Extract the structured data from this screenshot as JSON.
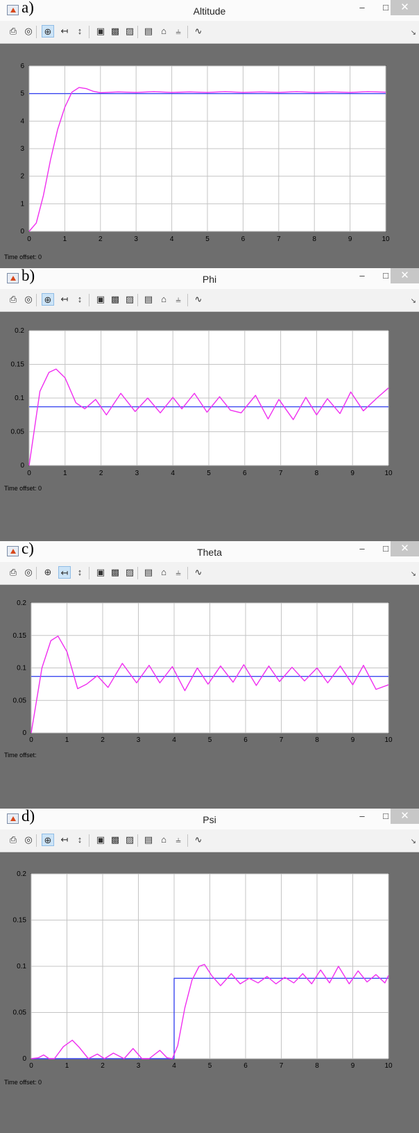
{
  "toolbar_icons": [
    {
      "name": "print-icon",
      "glyph": "⎙"
    },
    {
      "name": "parameters-icon",
      "glyph": "◎"
    },
    {
      "name": "zoom-in-icon",
      "glyph": "⊕"
    },
    {
      "name": "zoom-x-icon",
      "glyph": "↤"
    },
    {
      "name": "zoom-y-icon",
      "glyph": "↕"
    },
    {
      "name": "autoscale-icon",
      "glyph": "▣"
    },
    {
      "name": "save-axes-icon",
      "glyph": "▩"
    },
    {
      "name": "restore-axes-icon",
      "glyph": "▨"
    },
    {
      "name": "floating-scope-icon",
      "glyph": "▤"
    },
    {
      "name": "lock-icon",
      "glyph": "⌂"
    },
    {
      "name": "signal-selector-icon",
      "glyph": "⫨"
    },
    {
      "name": "legend-icon",
      "glyph": "∿"
    }
  ],
  "window_controls": {
    "minimize": "–",
    "maximize": "□",
    "close": "✕"
  },
  "colors": {
    "reference": "#3b48f0",
    "response": "#f02ef0",
    "axes_bg": "#ffffff",
    "grid": "#c4c4c4",
    "figure_bg": "#6e6e6e"
  },
  "chart_data": [
    {
      "type": "line",
      "label": "a)",
      "title": "Altitude",
      "xlim": [
        0,
        10
      ],
      "ylim": [
        0,
        6
      ],
      "x_ticks": [
        "0",
        "1",
        "2",
        "3",
        "4",
        "5",
        "6",
        "7",
        "8",
        "9",
        "10"
      ],
      "y_ticks": [
        "0",
        "1",
        "2",
        "3",
        "4",
        "5",
        "6"
      ],
      "time_offset": "Time offset:  0",
      "active_tool": 2,
      "series": [
        {
          "role": "reference",
          "x": [
            0,
            10
          ],
          "y": [
            5,
            5
          ]
        },
        {
          "role": "response",
          "x": [
            0,
            0.2,
            0.4,
            0.6,
            0.8,
            1.0,
            1.2,
            1.4,
            1.6,
            1.8,
            2.0,
            2.5,
            3,
            3.5,
            4,
            4.5,
            5,
            5.5,
            6,
            6.5,
            7,
            7.5,
            8,
            8.5,
            9,
            9.5,
            10
          ],
          "y": [
            0,
            0.3,
            1.3,
            2.6,
            3.7,
            4.5,
            5.05,
            5.22,
            5.18,
            5.08,
            5.03,
            5.06,
            5.04,
            5.07,
            5.04,
            5.06,
            5.04,
            5.07,
            5.04,
            5.06,
            5.04,
            5.07,
            5.04,
            5.06,
            5.04,
            5.07,
            5.05
          ]
        }
      ]
    },
    {
      "type": "line",
      "label": "b)",
      "title": "Phi",
      "xlim": [
        0,
        10
      ],
      "ylim": [
        0,
        0.2
      ],
      "x_ticks": [
        "0",
        "1",
        "2",
        "3",
        "4",
        "5",
        "6",
        "7",
        "8",
        "9",
        "10"
      ],
      "y_ticks": [
        "0",
        "0.05",
        "0.1",
        "0.15",
        "0.2"
      ],
      "time_offset": "Time offset:  0",
      "active_tool": 2,
      "series": [
        {
          "role": "reference",
          "x": [
            0,
            10
          ],
          "y": [
            0.087,
            0.087
          ]
        },
        {
          "role": "response",
          "x": [
            0,
            0.3,
            0.55,
            0.75,
            1.0,
            1.3,
            1.55,
            1.85,
            2.15,
            2.55,
            2.95,
            3.3,
            3.65,
            4.0,
            4.25,
            4.6,
            4.95,
            5.3,
            5.6,
            5.9,
            6.3,
            6.65,
            6.95,
            7.35,
            7.7,
            8.0,
            8.3,
            8.65,
            8.95,
            9.3,
            9.7,
            10
          ],
          "y": [
            0,
            0.11,
            0.138,
            0.143,
            0.13,
            0.093,
            0.084,
            0.098,
            0.075,
            0.107,
            0.08,
            0.1,
            0.078,
            0.101,
            0.084,
            0.107,
            0.079,
            0.102,
            0.082,
            0.078,
            0.104,
            0.069,
            0.098,
            0.068,
            0.101,
            0.075,
            0.099,
            0.077,
            0.109,
            0.081,
            0.101,
            0.115
          ]
        }
      ]
    },
    {
      "type": "line",
      "label": "c)",
      "title": "Theta",
      "xlim": [
        0,
        10
      ],
      "ylim": [
        0,
        0.2
      ],
      "x_ticks": [
        "0",
        "1",
        "2",
        "3",
        "4",
        "5",
        "6",
        "7",
        "8",
        "9",
        "10"
      ],
      "y_ticks": [
        "0",
        "0.05",
        "0.1",
        "0.15",
        "0.2"
      ],
      "time_offset": "Time offset:",
      "active_tool": 3,
      "series": [
        {
          "role": "reference",
          "x": [
            0,
            10
          ],
          "y": [
            0.087,
            0.087
          ]
        },
        {
          "role": "response",
          "x": [
            0,
            0.3,
            0.55,
            0.75,
            1.0,
            1.3,
            1.55,
            1.85,
            2.15,
            2.55,
            2.95,
            3.3,
            3.6,
            3.95,
            4.3,
            4.65,
            4.95,
            5.3,
            5.65,
            5.95,
            6.3,
            6.65,
            6.95,
            7.3,
            7.65,
            8.0,
            8.3,
            8.65,
            9.0,
            9.3,
            9.65,
            10
          ],
          "y": [
            0,
            0.1,
            0.142,
            0.149,
            0.125,
            0.068,
            0.075,
            0.088,
            0.07,
            0.107,
            0.077,
            0.104,
            0.077,
            0.102,
            0.065,
            0.1,
            0.075,
            0.103,
            0.078,
            0.105,
            0.073,
            0.103,
            0.079,
            0.101,
            0.08,
            0.1,
            0.077,
            0.103,
            0.074,
            0.104,
            0.067,
            0.074
          ]
        }
      ]
    },
    {
      "type": "line",
      "label": "d)",
      "title": "Psi",
      "xlim": [
        0,
        10
      ],
      "ylim": [
        0,
        0.2
      ],
      "x_ticks": [
        "0",
        "1",
        "2",
        "3",
        "4",
        "5",
        "6",
        "7",
        "8",
        "9",
        "10"
      ],
      "y_ticks": [
        "0",
        "0.05",
        "0.1",
        "0.15",
        "0.2"
      ],
      "time_offset": "Time offset:  0",
      "active_tool": 2,
      "series": [
        {
          "role": "reference",
          "x": [
            0,
            4,
            4,
            10
          ],
          "y": [
            0,
            0,
            0.087,
            0.087
          ]
        },
        {
          "role": "response",
          "x": [
            0,
            0.2,
            0.35,
            0.5,
            0.65,
            0.9,
            1.15,
            1.35,
            1.6,
            1.85,
            2.05,
            2.3,
            2.6,
            2.85,
            3.1,
            3.3,
            3.6,
            3.8,
            3.95,
            4.1,
            4.3,
            4.5,
            4.7,
            4.85,
            5.05,
            5.3,
            5.6,
            5.85,
            6.1,
            6.35,
            6.6,
            6.85,
            7.1,
            7.35,
            7.6,
            7.85,
            8.1,
            8.35,
            8.6,
            8.9,
            9.15,
            9.4,
            9.65,
            9.9,
            10
          ],
          "y": [
            0,
            0.001,
            0.004,
            0,
            0,
            0.013,
            0.02,
            0.012,
            0,
            0.005,
            0,
            0.006,
            0,
            0.011,
            0,
            0,
            0.009,
            0.001,
            0,
            0.014,
            0.055,
            0.085,
            0.1,
            0.102,
            0.09,
            0.079,
            0.092,
            0.081,
            0.087,
            0.082,
            0.089,
            0.081,
            0.088,
            0.082,
            0.092,
            0.081,
            0.096,
            0.082,
            0.1,
            0.081,
            0.095,
            0.083,
            0.091,
            0.082,
            0.09
          ]
        }
      ]
    }
  ]
}
